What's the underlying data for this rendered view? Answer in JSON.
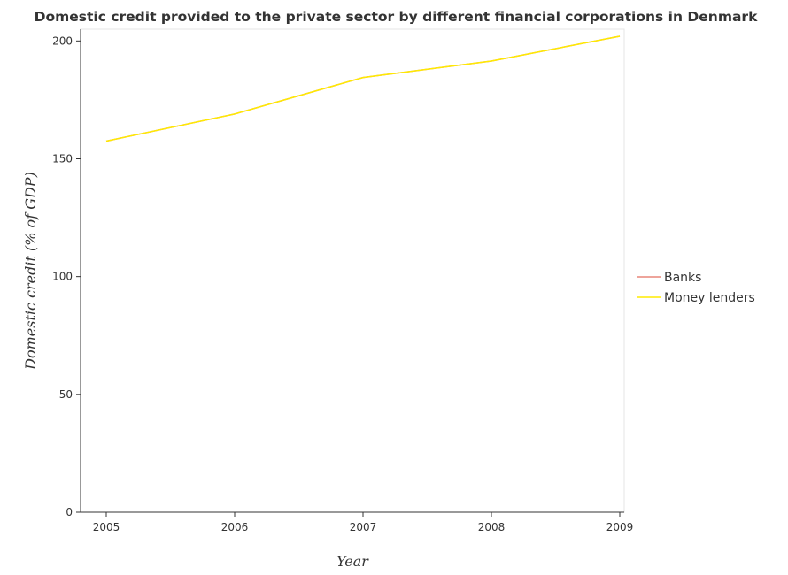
{
  "chart_data": {
    "type": "line",
    "title": "Domestic credit provided to the private sector by different financial corporations in Denmark",
    "xlabel": "Year",
    "ylabel": "Domestic credit (% of GDP)",
    "categories": [
      "2005",
      "2006",
      "2007",
      "2008",
      "2009"
    ],
    "ylim": [
      0,
      205
    ],
    "yticks": [
      0,
      50,
      100,
      150,
      200
    ],
    "grid": false,
    "legend_position": "right",
    "series": [
      {
        "name": "Banks",
        "color": "#e8857a",
        "values": [
          157.5,
          169,
          184.5,
          191.5,
          202
        ]
      },
      {
        "name": "Money lenders",
        "color": "#ffeb00",
        "values": [
          157.5,
          169,
          184.5,
          191.5,
          202
        ]
      }
    ]
  }
}
